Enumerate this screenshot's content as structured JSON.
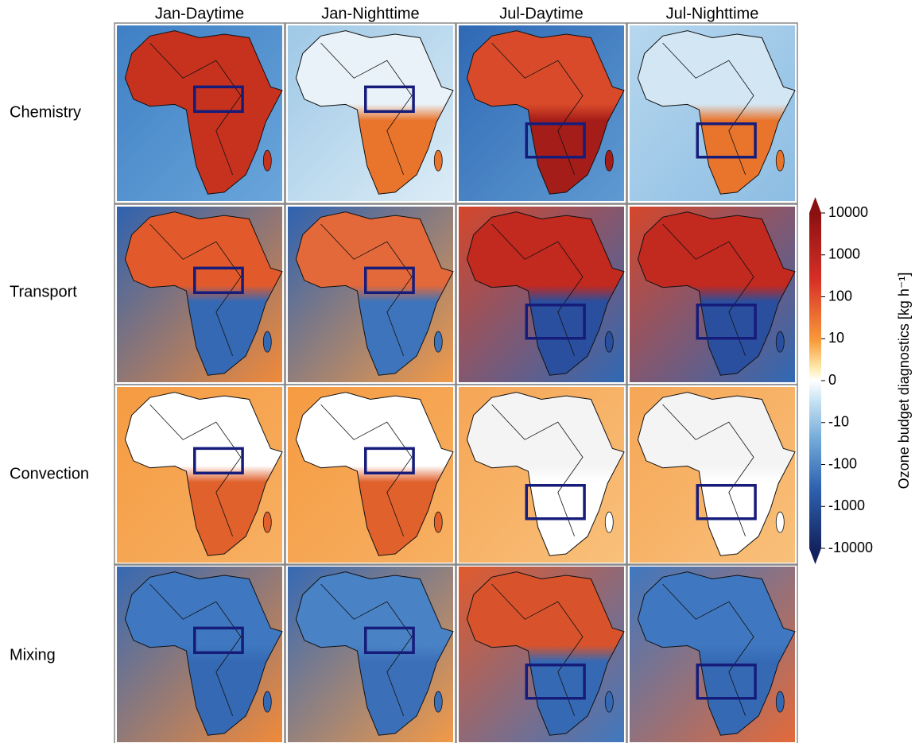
{
  "columns": [
    "Jan-Daytime",
    "Jan-Nighttime",
    "Jul-Daytime",
    "Jul-Nighttime"
  ],
  "rows": [
    "Chemistry",
    "Transport",
    "Convection",
    "Mixing"
  ],
  "colorbar": {
    "label": "Ozone budget diagnostics [kg h⁻¹]",
    "lim": [
      -10000,
      10000
    ],
    "ticks": [
      10000,
      1000,
      100,
      10,
      0,
      -10,
      -100,
      -1000,
      -10000
    ],
    "scale": "symlog",
    "linthresh": 10
  }
}
